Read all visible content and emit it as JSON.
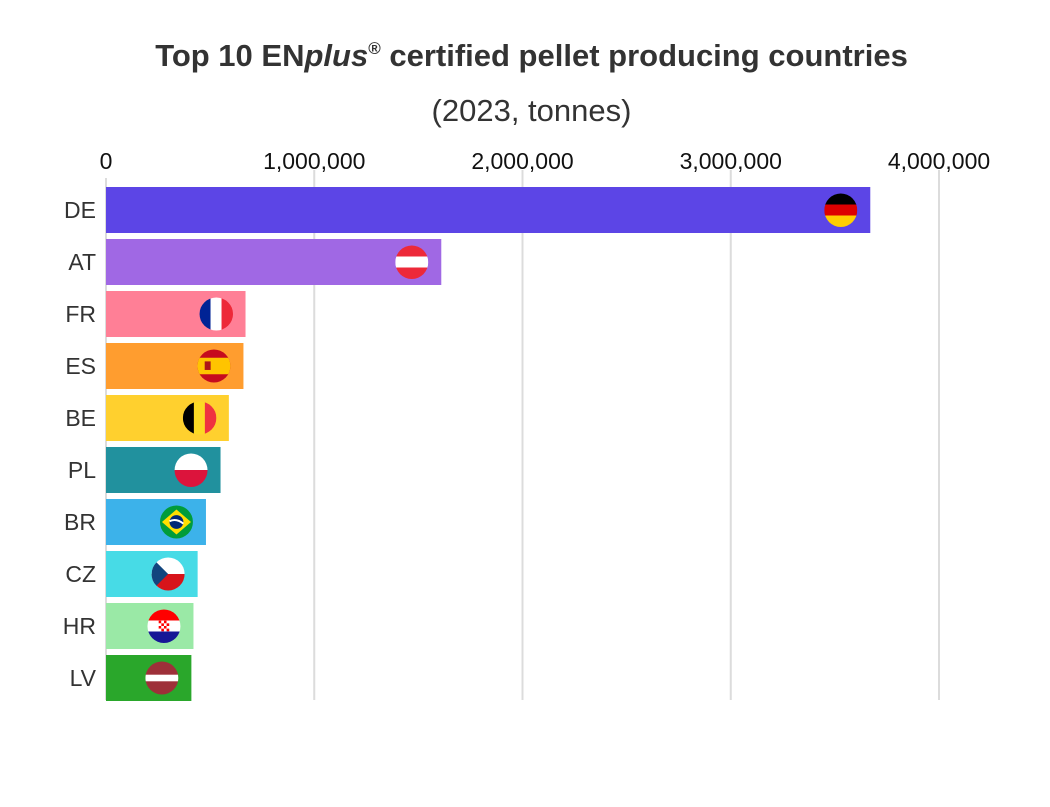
{
  "title": {
    "pre": "Top 10 EN",
    "italic": "plus",
    "sup": "®",
    "post": " certified pellet producing countries"
  },
  "subtitle": "(2023, tonnes)",
  "chart_data": {
    "type": "bar",
    "orientation": "horizontal",
    "title": "Top 10 ENplus® certified pellet producing countries",
    "subtitle": "(2023, tonnes)",
    "xlim": [
      0,
      4000000
    ],
    "x_ticks": [
      0,
      1000000,
      2000000,
      3000000,
      4000000
    ],
    "x_tick_labels": [
      "0",
      "1,000,000",
      "2,000,000",
      "3,000,000",
      "4,000,000"
    ],
    "grid": true,
    "categories": [
      "DE",
      "AT",
      "FR",
      "ES",
      "BE",
      "PL",
      "BR",
      "CZ",
      "HR",
      "LV"
    ],
    "values": [
      3670000,
      1610000,
      670000,
      660000,
      590000,
      550000,
      480000,
      440000,
      420000,
      410000
    ],
    "colors": [
      "#5c45e6",
      "#a068e4",
      "#ff7f96",
      "#ff9d2f",
      "#ffd02e",
      "#21919e",
      "#3cb2ea",
      "#47dbe6",
      "#9ae9a6",
      "#2aa72b"
    ],
    "flags": [
      "germany-flag",
      "austria-flag",
      "france-flag",
      "spain-flag",
      "belgium-flag",
      "poland-flag",
      "brazil-flag",
      "czech-flag",
      "croatia-flag",
      "latvia-flag"
    ]
  }
}
